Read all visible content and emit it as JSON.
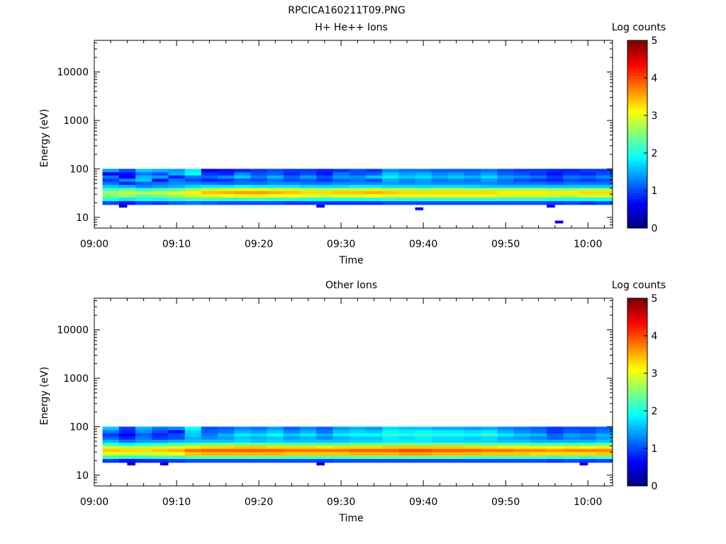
{
  "figure_title": "RPCICA160211T09.PNG",
  "colorbar": {
    "label": "Log counts",
    "ticks": [
      "0",
      "1",
      "2",
      "3",
      "4",
      "5"
    ],
    "range": [
      0,
      5
    ]
  },
  "chart_data": [
    {
      "type": "heatmap",
      "title": "H+ He++ Ions",
      "xlabel": "Time",
      "ylabel": "Energy (eV)",
      "x_ticks": [
        "09:00",
        "09:10",
        "09:20",
        "09:30",
        "09:40",
        "09:50",
        "10:00"
      ],
      "x_range": [
        "09:00",
        "10:03"
      ],
      "y_ticks": [
        "10",
        "100",
        "1000",
        "10000"
      ],
      "y_scale": "log",
      "ylim": [
        6,
        45000
      ],
      "bin_energies_eV": [
        20,
        24,
        28,
        33,
        38,
        44,
        51,
        59,
        69,
        80,
        93
      ],
      "start_time": "09:01",
      "end_time": "10:03",
      "color_scale": "jet",
      "clim": [
        0,
        5
      ],
      "time_bins": [
        {
          "t": "09:01",
          "c": [
            1.0,
            2.0,
            2.5,
            2.6,
            2.2,
            1.6,
            1.2,
            0.9,
            1.2,
            0.5,
            1.4
          ]
        },
        {
          "t": "09:03",
          "c": [
            0.7,
            1.8,
            2.6,
            2.8,
            2.3,
            1.5,
            0.8,
            1.3,
            0.6,
            0.7,
            1.0
          ]
        },
        {
          "t": "09:05",
          "c": [
            1.0,
            2.0,
            2.4,
            2.7,
            2.1,
            1.3,
            1.1,
            1.6,
            1.5,
            1.2,
            1.6
          ]
        },
        {
          "t": "09:07",
          "c": [
            0.9,
            1.9,
            2.5,
            2.8,
            2.2,
            1.4,
            1.2,
            0.7,
            1.4,
            1.0,
            1.5
          ]
        },
        {
          "t": "09:09",
          "c": [
            1.1,
            2.1,
            2.7,
            2.9,
            2.3,
            1.5,
            1.3,
            1.2,
            0.8,
            1.5,
            1.4
          ]
        },
        {
          "t": "09:11",
          "c": [
            1.2,
            2.2,
            2.9,
            3.2,
            2.6,
            1.7,
            1.3,
            1.0,
            1.2,
            1.9,
            1.8
          ]
        },
        {
          "t": "09:13",
          "c": [
            1.1,
            2.2,
            3.0,
            3.4,
            2.8,
            1.8,
            1.2,
            0.8,
            1.1,
            0.9,
            0.6
          ]
        },
        {
          "t": "09:15",
          "c": [
            1.0,
            2.1,
            3.1,
            3.5,
            2.9,
            1.8,
            1.1,
            0.9,
            1.3,
            0.8,
            0.7
          ]
        },
        {
          "t": "09:17",
          "c": [
            1.0,
            2.1,
            3.2,
            3.6,
            3.0,
            1.9,
            1.2,
            1.1,
            1.6,
            1.3,
            0.8
          ]
        },
        {
          "t": "09:19",
          "c": [
            1.0,
            2.2,
            3.2,
            3.6,
            3.0,
            1.8,
            1.2,
            1.0,
            1.2,
            1.0,
            0.9
          ]
        },
        {
          "t": "09:21",
          "c": [
            1.0,
            2.1,
            3.1,
            3.5,
            2.9,
            1.8,
            1.3,
            1.2,
            1.5,
            1.1,
            1.0
          ]
        },
        {
          "t": "09:23",
          "c": [
            0.9,
            2.1,
            3.1,
            3.4,
            2.9,
            1.8,
            1.3,
            1.0,
            1.1,
            0.8,
            0.9
          ]
        },
        {
          "t": "09:25",
          "c": [
            0.9,
            2.0,
            3.0,
            3.3,
            2.8,
            1.7,
            1.2,
            1.1,
            1.4,
            1.0,
            0.9
          ]
        },
        {
          "t": "09:27",
          "c": [
            0.9,
            2.0,
            2.9,
            3.3,
            2.7,
            1.7,
            1.2,
            0.9,
            1.0,
            0.7,
            0.8
          ]
        },
        {
          "t": "09:29",
          "c": [
            0.9,
            2.0,
            3.0,
            3.4,
            2.8,
            1.7,
            1.3,
            1.1,
            1.4,
            1.2,
            0.9
          ]
        },
        {
          "t": "09:31",
          "c": [
            0.9,
            2.0,
            3.0,
            3.4,
            2.8,
            1.8,
            1.3,
            1.2,
            1.3,
            1.0,
            1.0
          ]
        },
        {
          "t": "09:33",
          "c": [
            0.9,
            2.0,
            3.1,
            3.5,
            2.9,
            1.8,
            1.3,
            1.0,
            1.6,
            1.1,
            0.9
          ]
        },
        {
          "t": "09:35",
          "c": [
            1.0,
            2.1,
            3.0,
            3.4,
            2.8,
            1.7,
            1.4,
            1.5,
            1.8,
            1.6,
            1.3
          ]
        },
        {
          "t": "09:37",
          "c": [
            1.0,
            2.1,
            3.0,
            3.3,
            2.8,
            1.7,
            1.3,
            1.3,
            1.6,
            1.4,
            1.2
          ]
        },
        {
          "t": "09:39",
          "c": [
            1.0,
            2.1,
            3.0,
            3.3,
            2.7,
            1.7,
            1.4,
            1.4,
            1.7,
            1.5,
            1.2
          ]
        },
        {
          "t": "09:41",
          "c": [
            1.0,
            2.1,
            3.0,
            3.3,
            2.8,
            1.7,
            1.3,
            1.2,
            1.5,
            1.3,
            1.1
          ]
        },
        {
          "t": "09:43",
          "c": [
            1.0,
            2.1,
            3.0,
            3.3,
            2.8,
            1.7,
            1.3,
            1.3,
            1.6,
            1.4,
            1.1
          ]
        },
        {
          "t": "09:45",
          "c": [
            1.0,
            2.1,
            3.0,
            3.3,
            2.7,
            1.7,
            1.3,
            1.2,
            1.5,
            1.2,
            1.1
          ]
        },
        {
          "t": "09:47",
          "c": [
            1.0,
            2.1,
            3.0,
            3.3,
            2.7,
            1.6,
            1.3,
            1.4,
            1.7,
            1.4,
            1.2
          ]
        },
        {
          "t": "09:49",
          "c": [
            1.0,
            2.1,
            2.9,
            3.2,
            2.7,
            1.6,
            1.2,
            1.2,
            1.4,
            1.1,
            1.0
          ]
        },
        {
          "t": "09:51",
          "c": [
            1.0,
            2.1,
            2.9,
            3.2,
            2.7,
            1.6,
            1.2,
            1.0,
            1.3,
            1.0,
            0.9
          ]
        },
        {
          "t": "09:53",
          "c": [
            1.0,
            2.1,
            2.9,
            3.2,
            2.7,
            1.6,
            1.2,
            0.9,
            1.2,
            0.9,
            0.9
          ]
        },
        {
          "t": "09:55",
          "c": [
            0.9,
            2.0,
            2.8,
            3.2,
            2.6,
            1.6,
            1.1,
            0.8,
            0.9,
            0.7,
            0.8
          ]
        },
        {
          "t": "09:57",
          "c": [
            1.0,
            2.0,
            2.8,
            3.2,
            2.6,
            1.6,
            1.2,
            1.0,
            1.2,
            0.9,
            0.8
          ]
        },
        {
          "t": "09:59",
          "c": [
            0.9,
            2.0,
            2.9,
            3.3,
            2.7,
            1.6,
            1.2,
            0.9,
            1.1,
            0.8,
            0.9
          ]
        },
        {
          "t": "10:01",
          "c": [
            1.0,
            2.0,
            2.9,
            3.3,
            2.7,
            1.6,
            1.2,
            1.0,
            1.3,
            1.0,
            0.9
          ]
        }
      ],
      "isolated_bins": [
        {
          "t": "09:03",
          "e": 17,
          "c": 0.4
        },
        {
          "t": "09:27",
          "e": 17,
          "c": 0.6
        },
        {
          "t": "09:39",
          "e": 15,
          "c": 0.6
        },
        {
          "t": "09:55",
          "e": 17,
          "c": 0.6
        },
        {
          "t": "09:56",
          "e": 8,
          "c": 0.5
        }
      ]
    },
    {
      "type": "heatmap",
      "title": "Other Ions",
      "xlabel": "Time",
      "ylabel": "Energy (eV)",
      "x_ticks": [
        "09:00",
        "09:10",
        "09:20",
        "09:30",
        "09:40",
        "09:50",
        "10:00"
      ],
      "x_range": [
        "09:00",
        "10:03"
      ],
      "y_ticks": [
        "10",
        "100",
        "1000",
        "10000"
      ],
      "y_scale": "log",
      "ylim": [
        6,
        45000
      ],
      "bin_energies_eV": [
        20,
        24,
        28,
        33,
        38,
        44,
        51,
        59,
        69,
        80,
        93
      ],
      "start_time": "09:01",
      "end_time": "10:03",
      "color_scale": "jet",
      "clim": [
        0,
        5
      ],
      "time_bins": [
        {
          "t": "09:01",
          "c": [
            0.9,
            2.2,
            3.0,
            3.4,
            2.9,
            2.1,
            1.5,
            1.1,
            0.9,
            1.2,
            1.6
          ]
        },
        {
          "t": "09:03",
          "c": [
            0.7,
            2.1,
            3.0,
            3.3,
            2.8,
            1.9,
            1.2,
            0.8,
            0.6,
            0.8,
            0.9
          ]
        },
        {
          "t": "09:05",
          "c": [
            0.8,
            2.1,
            2.9,
            3.3,
            2.8,
            2.0,
            1.4,
            1.2,
            1.1,
            1.3,
            1.5
          ]
        },
        {
          "t": "09:07",
          "c": [
            0.8,
            2.2,
            3.0,
            3.4,
            2.9,
            2.1,
            1.4,
            0.9,
            0.8,
            1.0,
            1.2
          ]
        },
        {
          "t": "09:09",
          "c": [
            0.9,
            2.2,
            3.1,
            3.5,
            3.0,
            2.2,
            1.5,
            1.0,
            1.0,
            0.7,
            1.3
          ]
        },
        {
          "t": "09:11",
          "c": [
            1.0,
            2.4,
            3.4,
            3.8,
            3.2,
            2.3,
            1.6,
            1.5,
            1.6,
            1.7,
            1.9
          ]
        },
        {
          "t": "09:13",
          "c": [
            1.0,
            2.4,
            3.5,
            3.9,
            3.3,
            2.4,
            1.6,
            1.3,
            1.2,
            1.1,
            1.0
          ]
        },
        {
          "t": "09:15",
          "c": [
            1.0,
            2.4,
            3.5,
            3.9,
            3.3,
            2.4,
            1.6,
            1.4,
            1.5,
            1.2,
            1.1
          ]
        },
        {
          "t": "09:17",
          "c": [
            1.0,
            2.4,
            3.5,
            3.9,
            3.4,
            2.4,
            1.7,
            1.6,
            1.8,
            1.5,
            1.3
          ]
        },
        {
          "t": "09:19",
          "c": [
            1.0,
            2.4,
            3.5,
            3.9,
            3.4,
            2.4,
            1.6,
            1.5,
            1.7,
            1.4,
            1.2
          ]
        },
        {
          "t": "09:21",
          "c": [
            1.0,
            2.4,
            3.5,
            3.9,
            3.3,
            2.4,
            1.7,
            1.6,
            1.9,
            1.6,
            1.4
          ]
        },
        {
          "t": "09:23",
          "c": [
            1.0,
            2.3,
            3.4,
            3.8,
            3.3,
            2.3,
            1.6,
            1.4,
            1.6,
            1.3,
            1.1
          ]
        },
        {
          "t": "09:25",
          "c": [
            1.0,
            2.3,
            3.4,
            3.8,
            3.3,
            2.3,
            1.6,
            1.5,
            1.8,
            1.5,
            1.3
          ]
        },
        {
          "t": "09:27",
          "c": [
            0.9,
            2.3,
            3.4,
            3.8,
            3.2,
            2.3,
            1.6,
            1.3,
            1.5,
            1.2,
            1.1
          ]
        },
        {
          "t": "09:29",
          "c": [
            1.0,
            2.3,
            3.4,
            3.8,
            3.3,
            2.3,
            1.6,
            1.5,
            1.8,
            1.6,
            1.4
          ]
        },
        {
          "t": "09:31",
          "c": [
            1.0,
            2.4,
            3.5,
            3.9,
            3.3,
            2.4,
            1.7,
            1.6,
            1.9,
            1.7,
            1.5
          ]
        },
        {
          "t": "09:33",
          "c": [
            1.0,
            2.4,
            3.5,
            3.9,
            3.3,
            2.4,
            1.7,
            1.6,
            1.9,
            1.6,
            1.4
          ]
        },
        {
          "t": "09:35",
          "c": [
            1.0,
            2.4,
            3.5,
            3.9,
            3.4,
            2.4,
            1.8,
            1.8,
            2.1,
            1.9,
            1.7
          ]
        },
        {
          "t": "09:37",
          "c": [
            1.0,
            2.4,
            3.6,
            4.0,
            3.4,
            2.5,
            1.8,
            1.7,
            2.0,
            1.8,
            1.6
          ]
        },
        {
          "t": "09:39",
          "c": [
            1.0,
            2.4,
            3.6,
            4.0,
            3.4,
            2.4,
            1.8,
            1.8,
            2.1,
            1.9,
            1.6
          ]
        },
        {
          "t": "09:41",
          "c": [
            1.0,
            2.4,
            3.5,
            3.9,
            3.4,
            2.4,
            1.7,
            1.7,
            2.0,
            1.8,
            1.5
          ]
        },
        {
          "t": "09:43",
          "c": [
            1.0,
            2.4,
            3.5,
            3.9,
            3.4,
            2.4,
            1.7,
            1.7,
            2.0,
            1.8,
            1.5
          ]
        },
        {
          "t": "09:45",
          "c": [
            1.0,
            2.3,
            3.5,
            3.9,
            3.3,
            2.4,
            1.7,
            1.6,
            1.9,
            1.7,
            1.4
          ]
        },
        {
          "t": "09:47",
          "c": [
            1.0,
            2.3,
            3.4,
            3.8,
            3.3,
            2.3,
            1.7,
            1.7,
            2.1,
            1.8,
            1.5
          ]
        },
        {
          "t": "09:49",
          "c": [
            1.0,
            2.3,
            3.4,
            3.8,
            3.2,
            2.3,
            1.6,
            1.5,
            1.8,
            1.5,
            1.3
          ]
        },
        {
          "t": "09:51",
          "c": [
            1.0,
            2.3,
            3.4,
            3.7,
            3.2,
            2.3,
            1.6,
            1.4,
            1.6,
            1.3,
            1.2
          ]
        },
        {
          "t": "09:53",
          "c": [
            1.0,
            2.3,
            3.3,
            3.7,
            3.2,
            2.2,
            1.5,
            1.3,
            1.5,
            1.2,
            1.1
          ]
        },
        {
          "t": "09:55",
          "c": [
            0.9,
            2.2,
            3.3,
            3.6,
            3.1,
            2.2,
            1.5,
            1.1,
            1.1,
            0.9,
            0.9
          ]
        },
        {
          "t": "09:57",
          "c": [
            1.0,
            2.3,
            3.3,
            3.7,
            3.2,
            2.2,
            1.5,
            1.3,
            1.4,
            1.1,
            1.0
          ]
        },
        {
          "t": "09:59",
          "c": [
            0.9,
            2.2,
            3.3,
            3.7,
            3.1,
            2.2,
            1.5,
            1.2,
            1.3,
            1.0,
            1.0
          ]
        },
        {
          "t": "10:01",
          "c": [
            1.0,
            2.3,
            3.4,
            3.7,
            3.2,
            2.3,
            1.6,
            1.4,
            1.5,
            1.2,
            1.1
          ]
        }
      ],
      "isolated_bins": [
        {
          "t": "09:04",
          "e": 17,
          "c": 0.4
        },
        {
          "t": "09:08",
          "e": 17,
          "c": 0.5
        },
        {
          "t": "09:27",
          "e": 17,
          "c": 0.5
        },
        {
          "t": "09:59",
          "e": 17,
          "c": 0.5
        }
      ]
    }
  ]
}
